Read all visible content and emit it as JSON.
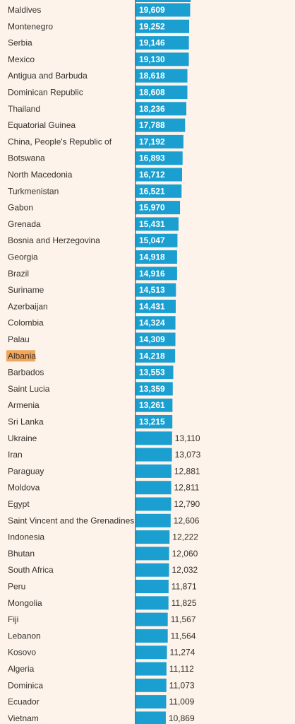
{
  "chart_data": {
    "type": "bar",
    "orientation": "horizontal",
    "bar_color": "#1a9fd0",
    "highlight_color": "#f2a65a",
    "highlighted_category": "Albania",
    "categories": [
      "Maldives",
      "Montenegro",
      "Serbia",
      "Mexico",
      "Antigua and Barbuda",
      "Dominican Republic",
      "Thailand",
      "Equatorial Guinea",
      "China, People's Republic of",
      "Botswana",
      "North Macedonia",
      "Turkmenistan",
      "Gabon",
      "Grenada",
      "Bosnia and Herzegovina",
      "Georgia",
      "Brazil",
      "Suriname",
      "Azerbaijan",
      "Colombia",
      "Palau",
      "Albania",
      "Barbados",
      "Saint Lucia",
      "Armenia",
      "Sri Lanka",
      "Ukraine",
      "Iran",
      "Paraguay",
      "Moldova",
      "Egypt",
      "Saint Vincent and the Grenadines",
      "Indonesia",
      "Bhutan",
      "South Africa",
      "Peru",
      "Mongolia",
      "Fiji",
      "Lebanon",
      "Kosovo",
      "Algeria",
      "Dominica",
      "Ecuador",
      "Vietnam"
    ],
    "values": [
      19609,
      19252,
      19146,
      19130,
      18618,
      18608,
      18236,
      17788,
      17192,
      16893,
      16712,
      16521,
      15970,
      15431,
      15047,
      14918,
      14916,
      14513,
      14431,
      14324,
      14309,
      14218,
      13553,
      13359,
      13261,
      13215,
      13110,
      13073,
      12881,
      12811,
      12790,
      12606,
      12222,
      12060,
      12032,
      11871,
      11825,
      11567,
      11564,
      11274,
      11112,
      11073,
      11009,
      10869
    ],
    "value_labels": [
      "19,609",
      "19,252",
      "19,146",
      "19,130",
      "18,618",
      "18,608",
      "18,236",
      "17,788",
      "17,192",
      "16,893",
      "16,712",
      "16,521",
      "15,970",
      "15,431",
      "15,047",
      "14,918",
      "14,916",
      "14,513",
      "14,431",
      "14,324",
      "14,309",
      "14,218",
      "13,553",
      "13,359",
      "13,261",
      "13,215",
      "13,110",
      "13,073",
      "12,881",
      "12,811",
      "12,790",
      "12,606",
      "12,222",
      "12,060",
      "12,032",
      "11,871",
      "11,825",
      "11,567",
      "11,564",
      "11,274",
      "11,112",
      "11,073",
      "11,009",
      "10,869"
    ],
    "title": "",
    "xlabel": "",
    "ylabel": "",
    "grid": false,
    "legend": "none"
  }
}
